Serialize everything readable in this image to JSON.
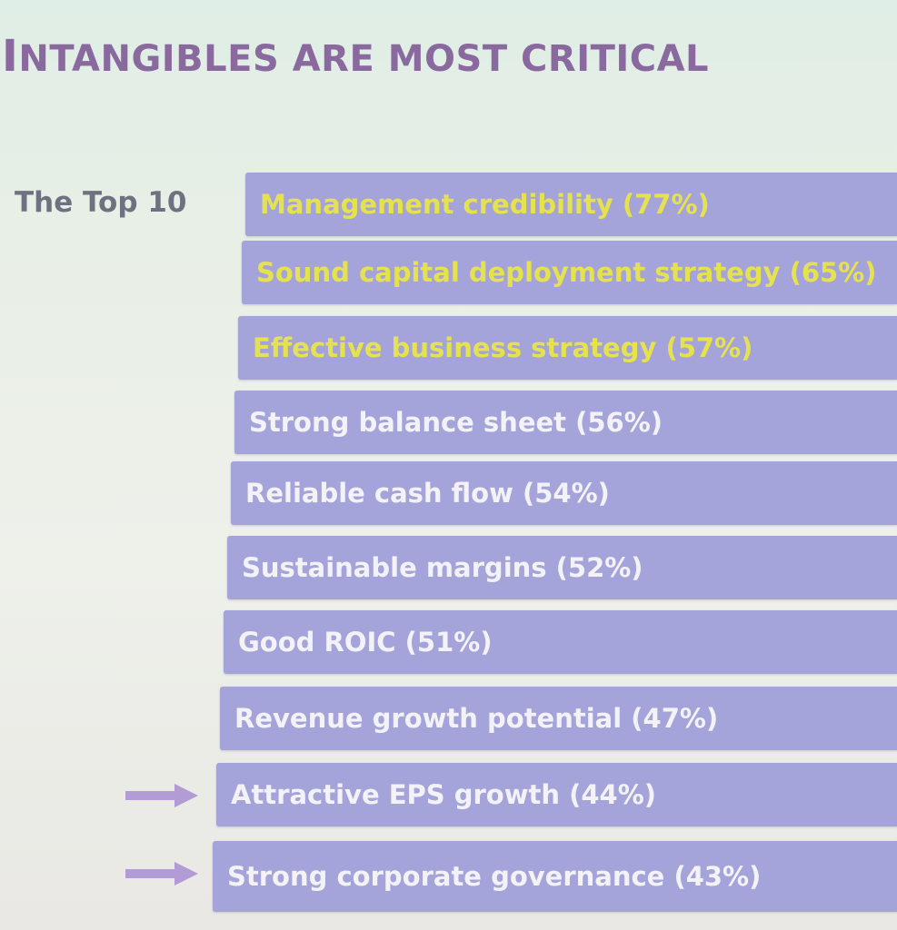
{
  "slide": {
    "title_first_letter": "I",
    "title_rest": "NTANGIBLES ARE MOST CRITICAL",
    "top_label": "The Top 10"
  },
  "colors": {
    "title": "#8a6a9e",
    "bar": "#a5a4da",
    "highlight_text": "#e6e24e",
    "normal_text": "#f3f2f8",
    "arrow": "#b39bd6"
  },
  "items": [
    {
      "label": "Management credibility (77%)",
      "highlight": true
    },
    {
      "label": "Sound capital deployment strategy (65%)",
      "highlight": true
    },
    {
      "label": "Effective business strategy (57%)",
      "highlight": true
    },
    {
      "label": "Strong balance sheet (56%)",
      "highlight": false
    },
    {
      "label": "Reliable cash flow (54%)",
      "highlight": false
    },
    {
      "label": "Sustainable margins (52%)",
      "highlight": false
    },
    {
      "label": "Good ROIC (51%)",
      "highlight": false
    },
    {
      "label": "Revenue growth potential (47%)",
      "highlight": false
    },
    {
      "label": "Attractive EPS growth (44%)",
      "highlight": false,
      "arrow": "arrow-icon"
    },
    {
      "label": "Strong corporate governance (43%)",
      "highlight": false,
      "arrow": "arrow-icon"
    }
  ]
}
